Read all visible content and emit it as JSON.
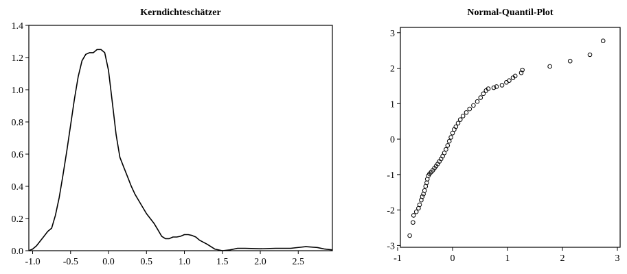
{
  "chart_data": [
    {
      "type": "line",
      "title": "Kerndichteschätzer",
      "xlabel": "",
      "ylabel": "",
      "xlim": [
        -1.05,
        2.95
      ],
      "ylim": [
        0,
        1.4
      ],
      "xticks": [
        -1.0,
        -0.5,
        0.0,
        0.5,
        1.0,
        1.5,
        2.0,
        2.5
      ],
      "xtick_labels": [
        "-1.0",
        "-0.5",
        "0.0",
        "0.5",
        "1.0",
        "1.5",
        "2.0",
        "2.5"
      ],
      "yticks": [
        0.0,
        0.2,
        0.4,
        0.6,
        0.8,
        1.0,
        1.2,
        1.4
      ],
      "ytick_labels": [
        "0.0",
        "0.2",
        "0.4",
        "0.6",
        "0.8",
        "1.0",
        "1.2",
        "1.4"
      ],
      "series": [
        {
          "points": [
            [
              -1.05,
              0.0
            ],
            [
              -1.0,
              0.01
            ],
            [
              -0.95,
              0.03
            ],
            [
              -0.9,
              0.06
            ],
            [
              -0.85,
              0.09
            ],
            [
              -0.8,
              0.12
            ],
            [
              -0.75,
              0.14
            ],
            [
              -0.7,
              0.22
            ],
            [
              -0.65,
              0.33
            ],
            [
              -0.6,
              0.47
            ],
            [
              -0.55,
              0.62
            ],
            [
              -0.5,
              0.78
            ],
            [
              -0.45,
              0.94
            ],
            [
              -0.4,
              1.08
            ],
            [
              -0.35,
              1.18
            ],
            [
              -0.3,
              1.22
            ],
            [
              -0.25,
              1.23
            ],
            [
              -0.2,
              1.23
            ],
            [
              -0.15,
              1.25
            ],
            [
              -0.1,
              1.25
            ],
            [
              -0.05,
              1.23
            ],
            [
              0.0,
              1.12
            ],
            [
              0.05,
              0.92
            ],
            [
              0.1,
              0.72
            ],
            [
              0.15,
              0.58
            ],
            [
              0.2,
              0.52
            ],
            [
              0.25,
              0.46
            ],
            [
              0.3,
              0.4
            ],
            [
              0.35,
              0.35
            ],
            [
              0.4,
              0.31
            ],
            [
              0.45,
              0.27
            ],
            [
              0.5,
              0.23
            ],
            [
              0.55,
              0.2
            ],
            [
              0.6,
              0.17
            ],
            [
              0.65,
              0.13
            ],
            [
              0.7,
              0.09
            ],
            [
              0.75,
              0.075
            ],
            [
              0.8,
              0.075
            ],
            [
              0.85,
              0.085
            ],
            [
              0.9,
              0.085
            ],
            [
              0.95,
              0.09
            ],
            [
              1.0,
              0.1
            ],
            [
              1.05,
              0.1
            ],
            [
              1.1,
              0.095
            ],
            [
              1.15,
              0.085
            ],
            [
              1.2,
              0.065
            ],
            [
              1.3,
              0.04
            ],
            [
              1.4,
              0.01
            ],
            [
              1.5,
              0.0
            ],
            [
              1.6,
              0.005
            ],
            [
              1.7,
              0.015
            ],
            [
              1.8,
              0.015
            ],
            [
              2.0,
              0.012
            ],
            [
              2.2,
              0.015
            ],
            [
              2.4,
              0.015
            ],
            [
              2.6,
              0.025
            ],
            [
              2.75,
              0.02
            ],
            [
              2.85,
              0.01
            ],
            [
              2.95,
              0.005
            ]
          ]
        }
      ],
      "grid": false
    },
    {
      "type": "scatter",
      "title": "Normal-Quantil-Plot",
      "xlabel": "",
      "ylabel": "",
      "xlim": [
        -0.95,
        3.05
      ],
      "ylim": [
        -3.05,
        3.15
      ],
      "xticks": [
        -1,
        0,
        1,
        2,
        3
      ],
      "xtick_labels": [
        "-1",
        "0",
        "1",
        "2",
        "3"
      ],
      "yticks": [
        -3,
        -2,
        -1,
        0,
        1,
        2,
        3
      ],
      "ytick_labels": [
        "-3",
        "-2",
        "-1",
        "0",
        "1",
        "2",
        "3"
      ],
      "series": [
        {
          "points": [
            [
              -0.78,
              -2.72
            ],
            [
              -0.72,
              -2.35
            ],
            [
              -0.71,
              -2.15
            ],
            [
              -0.66,
              -2.05
            ],
            [
              -0.62,
              -1.95
            ],
            [
              -0.6,
              -1.85
            ],
            [
              -0.57,
              -1.72
            ],
            [
              -0.55,
              -1.62
            ],
            [
              -0.53,
              -1.55
            ],
            [
              -0.51,
              -1.45
            ],
            [
              -0.49,
              -1.33
            ],
            [
              -0.47,
              -1.23
            ],
            [
              -0.46,
              -1.13
            ],
            [
              -0.44,
              -1.03
            ],
            [
              -0.42,
              -0.98
            ],
            [
              -0.39,
              -0.93
            ],
            [
              -0.36,
              -0.88
            ],
            [
              -0.33,
              -0.82
            ],
            [
              -0.3,
              -0.76
            ],
            [
              -0.27,
              -0.7
            ],
            [
              -0.24,
              -0.63
            ],
            [
              -0.21,
              -0.56
            ],
            [
              -0.18,
              -0.48
            ],
            [
              -0.15,
              -0.39
            ],
            [
              -0.12,
              -0.29
            ],
            [
              -0.09,
              -0.18
            ],
            [
              -0.06,
              -0.06
            ],
            [
              -0.03,
              0.05
            ],
            [
              0.0,
              0.17
            ],
            [
              0.03,
              0.27
            ],
            [
              0.06,
              0.35
            ],
            [
              0.1,
              0.45
            ],
            [
              0.14,
              0.55
            ],
            [
              0.19,
              0.65
            ],
            [
              0.25,
              0.75
            ],
            [
              0.31,
              0.85
            ],
            [
              0.38,
              0.95
            ],
            [
              0.45,
              1.06
            ],
            [
              0.51,
              1.17
            ],
            [
              0.56,
              1.28
            ],
            [
              0.61,
              1.37
            ],
            [
              0.65,
              1.42
            ],
            [
              0.75,
              1.45
            ],
            [
              0.8,
              1.48
            ],
            [
              0.9,
              1.52
            ],
            [
              0.98,
              1.6
            ],
            [
              1.03,
              1.65
            ],
            [
              1.1,
              1.73
            ],
            [
              1.14,
              1.78
            ],
            [
              1.25,
              1.87
            ],
            [
              1.27,
              1.95
            ],
            [
              1.77,
              2.05
            ],
            [
              2.14,
              2.2
            ],
            [
              2.5,
              2.38
            ],
            [
              2.74,
              2.77
            ]
          ]
        }
      ],
      "grid": false
    }
  ]
}
